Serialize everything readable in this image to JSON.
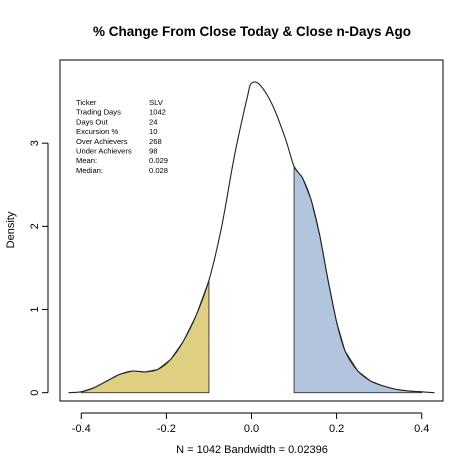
{
  "chart_data": {
    "type": "area",
    "title": "% Change From Close Today & Close n-Days Ago",
    "xlabel": "N = 1042   Bandwidth = 0.02396",
    "ylabel": "Density",
    "xlim": [
      -0.45,
      0.45
    ],
    "ylim": [
      -0.1,
      4.0
    ],
    "x_ticks": [
      -0.4,
      -0.2,
      0.0,
      0.2,
      0.4
    ],
    "x_tick_labels": [
      "-0.4",
      "-0.2",
      "0.0",
      "0.2",
      "0.4"
    ],
    "y_ticks": [
      0,
      1,
      2,
      3
    ],
    "y_tick_labels": [
      "0",
      "1",
      "2",
      "3"
    ],
    "grid": false,
    "series": [
      {
        "x": [
          -0.43,
          -0.4,
          -0.37,
          -0.34,
          -0.31,
          -0.28,
          -0.25,
          -0.22,
          -0.19,
          -0.16,
          -0.13,
          -0.1,
          -0.07,
          -0.04,
          -0.01,
          0.0,
          0.02,
          0.05,
          0.08,
          0.1,
          0.12,
          0.14,
          0.16,
          0.18,
          0.2,
          0.22,
          0.25,
          0.28,
          0.31,
          0.34,
          0.37,
          0.4,
          0.43
        ],
        "values": [
          0.0,
          0.01,
          0.06,
          0.14,
          0.22,
          0.26,
          0.25,
          0.28,
          0.4,
          0.62,
          0.93,
          1.35,
          2.0,
          2.85,
          3.55,
          3.72,
          3.7,
          3.45,
          3.05,
          2.72,
          2.58,
          2.32,
          1.9,
          1.35,
          0.85,
          0.5,
          0.26,
          0.14,
          0.08,
          0.04,
          0.02,
          0.01,
          0.0
        ]
      }
    ],
    "shaded_regions": [
      {
        "from": -0.4,
        "to": -0.1,
        "color": "#dfcf80"
      },
      {
        "from": 0.1,
        "to": 0.4,
        "color": "#b3c4de"
      }
    ],
    "stats": {
      "rows": [
        {
          "label": "Ticker",
          "value": "SLV"
        },
        {
          "label": "Trading Days",
          "value": "1042"
        },
        {
          "label": "Days Out",
          "value": "24"
        },
        {
          "label": "Excursion %",
          "value": "10"
        },
        {
          "label": "Over Achievers",
          "value": "268"
        },
        {
          "label": "Under Achievers",
          "value": "98"
        },
        {
          "label": "Mean:",
          "value": "0.029"
        },
        {
          "label": "Median:",
          "value": "0.028"
        }
      ]
    }
  }
}
